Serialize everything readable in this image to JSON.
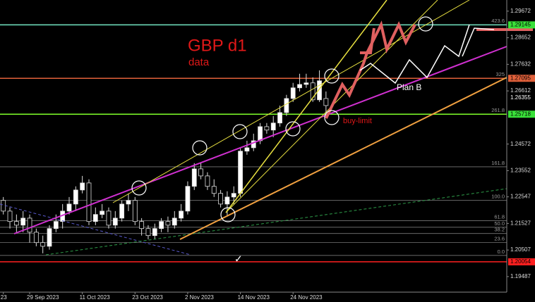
{
  "chart_data": {
    "type": "candlestick",
    "title": "GBP d1",
    "subtitle": "data",
    "categories": [
      "23",
      null,
      null,
      null,
      "29 Sep 2023",
      null,
      null,
      null,
      null,
      null,
      null,
      null,
      "11 Oct 2023",
      null,
      null,
      null,
      null,
      null,
      null,
      null,
      "23 Oct 2023",
      null,
      null,
      null,
      null,
      null,
      null,
      null,
      "2 Nov 2023",
      null,
      null,
      null,
      null,
      null,
      null,
      null,
      "14 Nov 2023",
      null,
      null,
      null,
      null,
      null,
      null,
      null,
      "24 Nov 2023",
      null,
      null,
      null,
      null,
      null
    ],
    "open": [
      1.2241,
      1.22,
      1.216,
      1.2146,
      1.2173,
      1.2119,
      1.2079,
      1.2065,
      1.2133,
      1.216,
      1.22,
      1.2227,
      1.2281,
      1.2308,
      1.216,
      1.2187,
      1.22,
      1.2146,
      1.2173,
      1.2227,
      1.2241,
      1.216,
      1.2133,
      1.2106,
      1.2133,
      1.216,
      1.2146,
      1.2173,
      1.22,
      1.2295,
      1.2362,
      1.2335,
      1.2295,
      1.2268,
      1.2227,
      1.2254,
      1.2268,
      1.243,
      1.2443,
      1.247,
      1.2524,
      1.2511,
      1.2538,
      1.2578,
      1.2632,
      1.2673,
      1.2686,
      1.2692,
      1.2627,
      1.2632
    ],
    "high": [
      1.2254,
      1.2214,
      1.2187,
      1.22,
      1.2187,
      1.2133,
      1.2106,
      1.2146,
      1.2187,
      1.2227,
      1.2254,
      1.2295,
      1.2335,
      1.2322,
      1.2214,
      1.2227,
      1.2214,
      1.22,
      1.2241,
      1.2268,
      1.2254,
      1.2173,
      1.2146,
      1.2152,
      1.2173,
      1.2179,
      1.22,
      1.2227,
      1.2314,
      1.2384,
      1.2384,
      1.2349,
      1.2322,
      1.2281,
      1.2276,
      1.2295,
      1.2443,
      1.247,
      1.2497,
      1.2538,
      1.2538,
      1.2565,
      1.2605,
      1.2646,
      1.2692,
      1.2727,
      1.2727,
      1.2713,
      1.274,
      1.2659
    ],
    "low": [
      1.2187,
      1.2133,
      1.2119,
      1.2119,
      1.2079,
      1.2065,
      1.2038,
      1.2052,
      1.2119,
      1.2133,
      1.2187,
      1.22,
      1.2268,
      1.2146,
      1.2146,
      1.2173,
      1.2133,
      1.2133,
      1.216,
      1.22,
      1.2146,
      1.2106,
      1.2092,
      1.2092,
      1.2119,
      1.2119,
      1.2133,
      1.216,
      1.2187,
      1.2281,
      1.2322,
      1.2281,
      1.2254,
      1.2214,
      1.2179,
      1.2227,
      1.2254,
      1.2416,
      1.243,
      1.2457,
      1.2497,
      1.2484,
      1.2524,
      1.2565,
      1.2619,
      1.2659,
      1.2673,
      1.2619,
      1.2619,
      1.2565
    ],
    "close": [
      1.22,
      1.216,
      1.2146,
      1.2173,
      1.2119,
      1.2079,
      1.2065,
      1.2133,
      1.216,
      1.22,
      1.2227,
      1.2281,
      1.2308,
      1.216,
      1.2187,
      1.22,
      1.2146,
      1.2173,
      1.2227,
      1.2241,
      1.216,
      1.2133,
      1.2106,
      1.2133,
      1.216,
      1.2146,
      1.2173,
      1.22,
      1.2295,
      1.2362,
      1.2335,
      1.2295,
      1.2268,
      1.2227,
      1.2254,
      1.2268,
      1.243,
      1.2443,
      1.247,
      1.2524,
      1.2511,
      1.2538,
      1.2578,
      1.2632,
      1.2673,
      1.2686,
      1.2692,
      1.2627,
      1.27,
      1.2605
    ],
    "ylim": [
      1.1889,
      1.301
    ],
    "yticks": [
      1.29672,
      1.28652,
      1.27632,
      1.26612,
      1.24572,
      1.23552,
      1.22547,
      1.21527,
      1.20507,
      1.19487
    ],
    "levels": [
      {
        "value": 1.29145,
        "color": "#5fd3b0",
        "label_color": "#39e039"
      },
      {
        "value": 1.27095,
        "color": "#e0603a",
        "label_color": "#e0603a"
      },
      {
        "value": 1.25718,
        "color": "#7fff2a",
        "label_color": "#39e039"
      },
      {
        "value": 1.20054,
        "color": "#ff2020",
        "label_color": "#ff2020"
      }
    ],
    "current_price": 1.26355,
    "fib_levels": [
      {
        "value": 1.2916,
        "label": "423.6"
      },
      {
        "value": 1.271,
        "label": "325"
      },
      {
        "value": 1.2572,
        "label": "261.8"
      },
      {
        "value": 1.237,
        "label": "161.8"
      },
      {
        "value": 1.2241,
        "label": "100.0"
      },
      {
        "value": 1.2163,
        "label": "61.8"
      },
      {
        "value": 1.2138,
        "label": "50.0"
      },
      {
        "value": 1.2114,
        "label": "38.2"
      },
      {
        "value": 1.2079,
        "label": "23.6"
      },
      {
        "value": 1.203,
        "label": "0.0"
      }
    ],
    "annotations": [
      "Plan B",
      "buy-limit",
      "✓"
    ]
  }
}
